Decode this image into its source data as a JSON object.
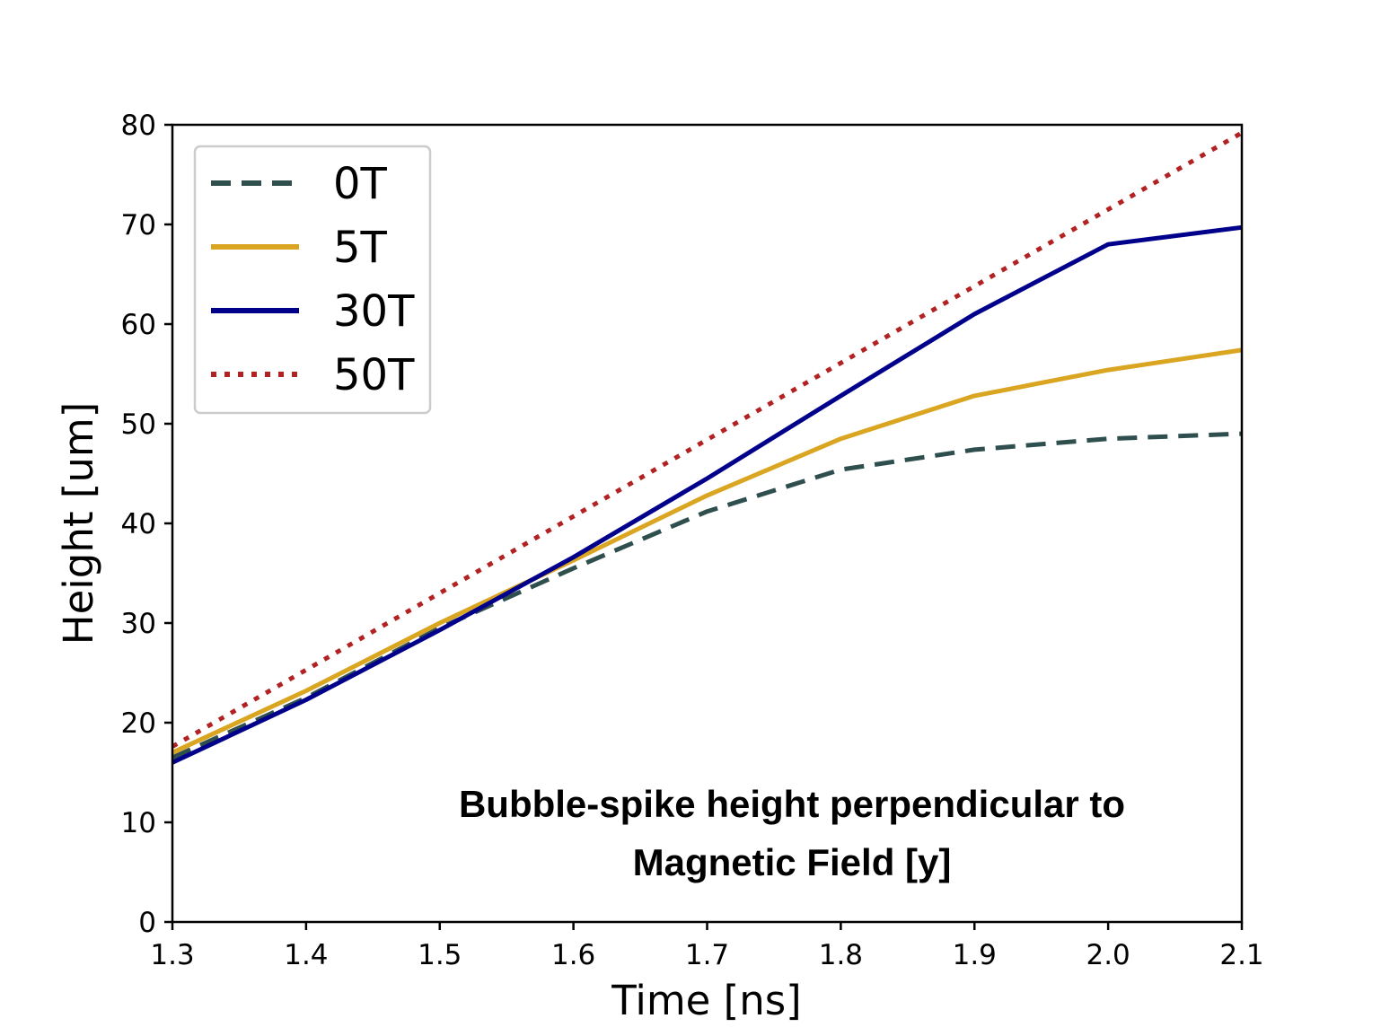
{
  "chart_data": {
    "type": "line",
    "title": "",
    "xlabel": "Time [ns]",
    "ylabel": "Height [um]",
    "xlim": [
      1.3,
      2.1
    ],
    "ylim": [
      0,
      80
    ],
    "grid": false,
    "legend_position": "top-left",
    "x_ticks": [
      "1.3",
      "1.4",
      "1.5",
      "1.6",
      "1.7",
      "1.8",
      "1.9",
      "2.0",
      "2.1"
    ],
    "y_ticks": [
      "0",
      "10",
      "20",
      "30",
      "40",
      "50",
      "60",
      "70",
      "80"
    ],
    "x": [
      1.3,
      1.4,
      1.5,
      1.6,
      1.7,
      1.8,
      1.9,
      2.0,
      2.1
    ],
    "series": [
      {
        "name": "0T",
        "color": "#2f4f4f",
        "style": "dashed",
        "values": [
          16.5,
          22.5,
          29.5,
          35.5,
          41.2,
          45.4,
          47.4,
          48.5,
          49.0
        ]
      },
      {
        "name": "5T",
        "color": "#daa520",
        "style": "solid",
        "values": [
          17.0,
          23.2,
          30.0,
          36.3,
          42.8,
          48.5,
          52.8,
          55.4,
          57.4
        ]
      },
      {
        "name": "30T",
        "color": "#00008b",
        "style": "solid",
        "values": [
          16.0,
          22.3,
          29.3,
          36.6,
          44.5,
          52.8,
          61.0,
          68.0,
          69.7
        ]
      },
      {
        "name": "50T",
        "color": "#b22222",
        "style": "dotted",
        "values": [
          17.6,
          25.3,
          33.0,
          40.7,
          48.4,
          56.1,
          63.8,
          71.5,
          79.2
        ]
      }
    ],
    "annotation": {
      "line1": "Bubble-spike height perpendicular to",
      "line2": "Magnetic Field [y]"
    }
  }
}
